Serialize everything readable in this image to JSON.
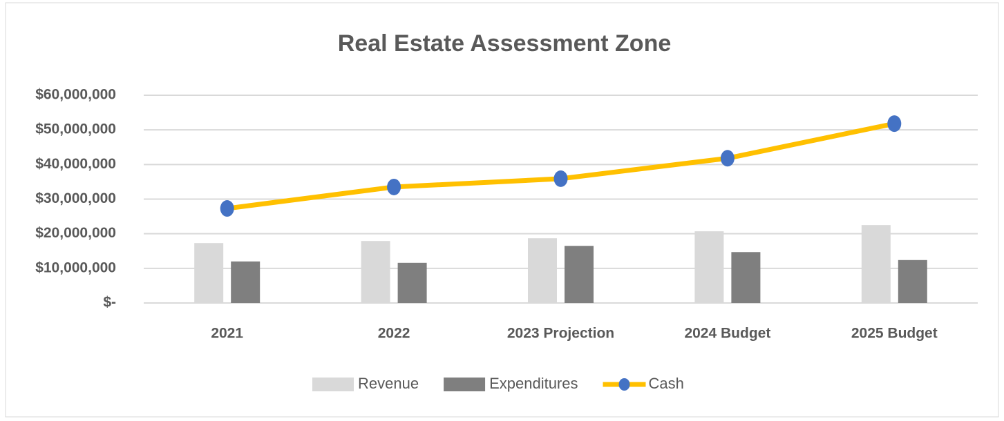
{
  "chart_data": {
    "type": "combo",
    "title": "Real Estate Assessment Zone",
    "categories": [
      "2021",
      "2022",
      "2023 Projection",
      "2024 Budget",
      "2025 Budget"
    ],
    "series": [
      {
        "name": "Revenue",
        "type": "bar",
        "color": "#d9d9d9",
        "values": [
          17300000,
          17900000,
          18700000,
          20700000,
          22500000
        ]
      },
      {
        "name": "Expenditures",
        "type": "bar",
        "color": "#7f7f7f",
        "values": [
          12000000,
          11600000,
          16500000,
          14700000,
          12400000
        ]
      },
      {
        "name": "Cash",
        "type": "line",
        "color": "#ffc000",
        "marker_color": "#4472c4",
        "values": [
          27300000,
          33500000,
          35900000,
          41800000,
          51800000
        ]
      }
    ],
    "ylim": [
      0,
      60000000
    ],
    "yticks": [
      {
        "value": 0,
        "label": "$-"
      },
      {
        "value": 10000000,
        "label": "$10,000,000"
      },
      {
        "value": 20000000,
        "label": "$20,000,000"
      },
      {
        "value": 30000000,
        "label": "$30,000,000"
      },
      {
        "value": 40000000,
        "label": "$40,000,000"
      },
      {
        "value": 50000000,
        "label": "$50,000,000"
      },
      {
        "value": 60000000,
        "label": "$60,000,000"
      }
    ],
    "grid": true,
    "legend": "bottom"
  }
}
